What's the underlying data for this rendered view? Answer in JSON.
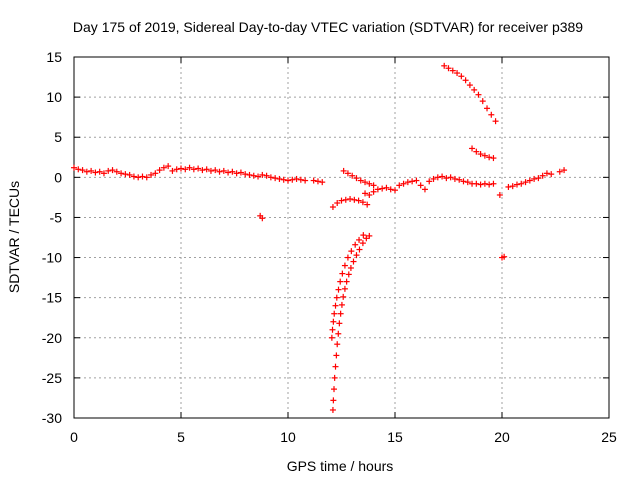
{
  "chart_data": {
    "type": "scatter",
    "title": "Day 175 of 2019, Sidereal Day-to-day VTEC variation (SDTVAR) for receiver p389",
    "xlabel": "GPS time / hours",
    "ylabel": "SDTVAR / TECUs",
    "xlim": [
      0,
      25
    ],
    "ylim": [
      -30,
      15
    ],
    "xticks": [
      0,
      5,
      10,
      15,
      20,
      25
    ],
    "yticks": [
      15,
      10,
      5,
      0,
      -5,
      -10,
      -15,
      -20,
      -25,
      -30
    ],
    "grid": true,
    "marker": "+",
    "color": "#ff0000",
    "series": [
      {
        "name": "SDTVAR",
        "points": [
          [
            0.0,
            1.2
          ],
          [
            0.2,
            1.0
          ],
          [
            0.4,
            0.9
          ],
          [
            0.6,
            0.7
          ],
          [
            0.8,
            0.8
          ],
          [
            1.0,
            0.6
          ],
          [
            1.2,
            0.7
          ],
          [
            1.4,
            0.5
          ],
          [
            1.6,
            0.8
          ],
          [
            1.8,
            0.9
          ],
          [
            2.0,
            0.7
          ],
          [
            2.2,
            0.5
          ],
          [
            2.4,
            0.4
          ],
          [
            2.6,
            0.3
          ],
          [
            2.8,
            0.1
          ],
          [
            3.0,
            0.0
          ],
          [
            3.2,
            0.1
          ],
          [
            3.4,
            0.0
          ],
          [
            3.6,
            0.3
          ],
          [
            3.8,
            0.5
          ],
          [
            4.0,
            0.9
          ],
          [
            4.2,
            1.2
          ],
          [
            4.4,
            1.4
          ],
          [
            4.6,
            0.8
          ],
          [
            4.8,
            1.0
          ],
          [
            5.0,
            1.1
          ],
          [
            5.2,
            1.0
          ],
          [
            5.4,
            1.2
          ],
          [
            5.6,
            1.0
          ],
          [
            5.8,
            1.1
          ],
          [
            6.0,
            0.9
          ],
          [
            6.2,
            1.0
          ],
          [
            6.4,
            0.8
          ],
          [
            6.6,
            0.9
          ],
          [
            6.8,
            0.7
          ],
          [
            7.0,
            0.8
          ],
          [
            7.2,
            0.6
          ],
          [
            7.4,
            0.7
          ],
          [
            7.6,
            0.5
          ],
          [
            7.8,
            0.6
          ],
          [
            8.0,
            0.4
          ],
          [
            8.2,
            0.3
          ],
          [
            8.4,
            0.2
          ],
          [
            8.6,
            0.1
          ],
          [
            8.8,
            0.3
          ],
          [
            9.0,
            0.2
          ],
          [
            9.2,
            0.0
          ],
          [
            9.4,
            -0.1
          ],
          [
            9.6,
            -0.2
          ],
          [
            9.8,
            -0.3
          ],
          [
            10.0,
            -0.4
          ],
          [
            10.2,
            -0.3
          ],
          [
            10.4,
            -0.2
          ],
          [
            10.6,
            -0.3
          ],
          [
            10.8,
            -0.4
          ],
          [
            11.2,
            -0.4
          ],
          [
            11.4,
            -0.5
          ],
          [
            11.6,
            -0.6
          ],
          [
            8.7,
            -4.8
          ],
          [
            8.8,
            -5.1
          ],
          [
            12.1,
            -3.7
          ],
          [
            12.3,
            -3.2
          ],
          [
            12.5,
            -2.9
          ],
          [
            12.7,
            -2.8
          ],
          [
            12.9,
            -2.7
          ],
          [
            13.1,
            -2.8
          ],
          [
            13.3,
            -2.9
          ],
          [
            13.5,
            -3.1
          ],
          [
            13.7,
            -3.4
          ],
          [
            12.6,
            0.8
          ],
          [
            12.8,
            0.5
          ],
          [
            13.0,
            0.2
          ],
          [
            13.2,
            -0.1
          ],
          [
            13.4,
            -0.4
          ],
          [
            13.6,
            -0.6
          ],
          [
            13.8,
            -0.8
          ],
          [
            14.0,
            -1.0
          ],
          [
            13.6,
            -2.0
          ],
          [
            13.8,
            -2.2
          ],
          [
            14.0,
            -1.8
          ],
          [
            14.2,
            -1.5
          ],
          [
            14.4,
            -1.4
          ],
          [
            14.6,
            -1.3
          ],
          [
            14.8,
            -1.5
          ],
          [
            15.0,
            -1.6
          ],
          [
            15.2,
            -1.0
          ],
          [
            15.4,
            -0.8
          ],
          [
            15.6,
            -0.6
          ],
          [
            15.8,
            -0.5
          ],
          [
            16.0,
            -0.4
          ],
          [
            16.2,
            -1.0
          ],
          [
            16.4,
            -1.5
          ],
          [
            16.6,
            -0.5
          ],
          [
            16.8,
            -0.2
          ],
          [
            17.0,
            0.0
          ],
          [
            17.2,
            0.1
          ],
          [
            17.4,
            -0.1
          ],
          [
            17.6,
            0.0
          ],
          [
            17.8,
            -0.2
          ],
          [
            18.0,
            -0.3
          ],
          [
            18.2,
            -0.5
          ],
          [
            18.4,
            -0.6
          ],
          [
            18.6,
            -0.8
          ],
          [
            18.8,
            -0.8
          ],
          [
            19.0,
            -0.9
          ],
          [
            19.2,
            -0.8
          ],
          [
            19.4,
            -0.9
          ],
          [
            19.6,
            -0.8
          ],
          [
            17.3,
            13.9
          ],
          [
            17.5,
            13.6
          ],
          [
            17.7,
            13.3
          ],
          [
            17.9,
            13.0
          ],
          [
            18.1,
            12.6
          ],
          [
            18.3,
            12.1
          ],
          [
            18.5,
            11.5
          ],
          [
            18.7,
            10.9
          ],
          [
            18.9,
            10.3
          ],
          [
            19.1,
            9.5
          ],
          [
            19.3,
            8.6
          ],
          [
            19.5,
            7.8
          ],
          [
            19.7,
            7.0
          ],
          [
            18.6,
            3.6
          ],
          [
            18.8,
            3.2
          ],
          [
            19.0,
            2.9
          ],
          [
            19.2,
            2.7
          ],
          [
            19.4,
            2.5
          ],
          [
            19.6,
            2.4
          ],
          [
            19.9,
            -2.2
          ],
          [
            20.0,
            -10.0
          ],
          [
            20.1,
            -9.9
          ],
          [
            20.3,
            -1.2
          ],
          [
            20.5,
            -1.1
          ],
          [
            20.7,
            -0.9
          ],
          [
            20.9,
            -0.8
          ],
          [
            21.1,
            -0.6
          ],
          [
            21.3,
            -0.4
          ],
          [
            21.5,
            -0.2
          ],
          [
            21.7,
            -0.1
          ],
          [
            21.9,
            0.2
          ],
          [
            22.1,
            0.5
          ],
          [
            22.3,
            0.4
          ],
          [
            22.7,
            0.7
          ],
          [
            22.9,
            0.9
          ],
          [
            12.1,
            -29.0
          ],
          [
            12.12,
            -27.8
          ],
          [
            12.15,
            -26.4
          ],
          [
            12.18,
            -25.0
          ],
          [
            12.22,
            -23.6
          ],
          [
            12.26,
            -22.2
          ],
          [
            12.3,
            -20.8
          ],
          [
            12.35,
            -19.5
          ],
          [
            12.4,
            -18.2
          ],
          [
            12.46,
            -17.0
          ],
          [
            12.52,
            -15.9
          ],
          [
            12.58,
            -14.9
          ],
          [
            12.66,
            -13.9
          ],
          [
            12.74,
            -13.0
          ],
          [
            12.84,
            -12.1
          ],
          [
            12.94,
            -11.3
          ],
          [
            13.06,
            -10.5
          ],
          [
            13.2,
            -9.7
          ],
          [
            13.34,
            -9.0
          ],
          [
            13.5,
            -8.2
          ],
          [
            13.66,
            -7.6
          ],
          [
            13.8,
            -7.3
          ],
          [
            12.05,
            -20.0
          ],
          [
            12.08,
            -19.0
          ],
          [
            12.12,
            -18.0
          ],
          [
            12.16,
            -17.0
          ],
          [
            12.22,
            -16.0
          ],
          [
            12.28,
            -15.0
          ],
          [
            12.36,
            -14.0
          ],
          [
            12.44,
            -13.0
          ],
          [
            12.54,
            -12.0
          ],
          [
            12.66,
            -11.0
          ],
          [
            12.8,
            -10.0
          ],
          [
            12.96,
            -9.2
          ],
          [
            13.14,
            -8.4
          ],
          [
            13.32,
            -7.8
          ],
          [
            13.52,
            -7.2
          ]
        ]
      }
    ]
  }
}
